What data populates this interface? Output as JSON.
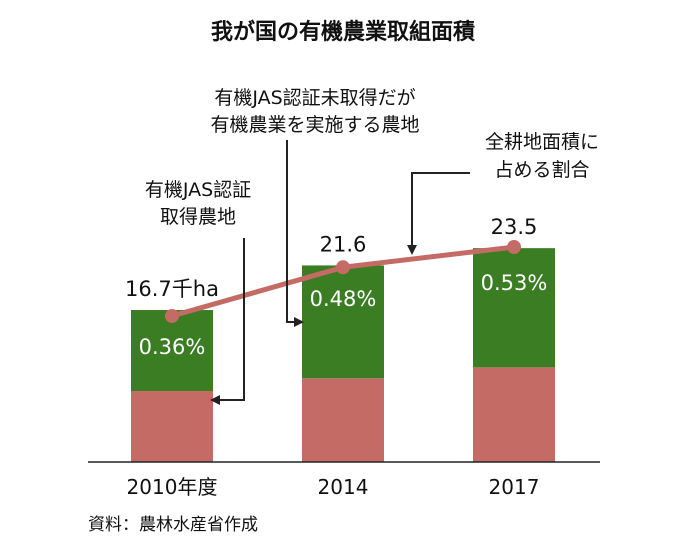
{
  "title": "我が国の有機農業取組面積",
  "source": "資料：農林水産省作成",
  "annotations": {
    "certified": [
      "有機JAS認証",
      "取得農地"
    ],
    "uncertified": [
      "有機JAS認証未取得だが",
      "有機農業を実施する農地"
    ],
    "share": [
      "全耕地面積に",
      "占める割合"
    ]
  },
  "colors": {
    "certified": "#c46b66",
    "uncertified": "#3a7d22",
    "share_line": "#c46b66",
    "axis": "#222222"
  },
  "chart_data": {
    "type": "bar",
    "stacked": true,
    "categories": [
      "2010年度",
      "2014",
      "2017"
    ],
    "series": [
      {
        "values": [
          7.8,
          9.2,
          10.4
        ]
      },
      {
        "values": [
          8.9,
          12.4,
          13.1
        ]
      }
    ],
    "totals": [
      16.7,
      21.6,
      23.5
    ],
    "total_labels": [
      "16.7千ha",
      "21.6",
      "23.5"
    ],
    "share_line": {
      "values": [
        0.36,
        0.48,
        0.53
      ],
      "labels": [
        "0.36%",
        "0.48%",
        "0.53%"
      ]
    },
    "ylim": [
      0,
      26
    ],
    "grid": false
  }
}
